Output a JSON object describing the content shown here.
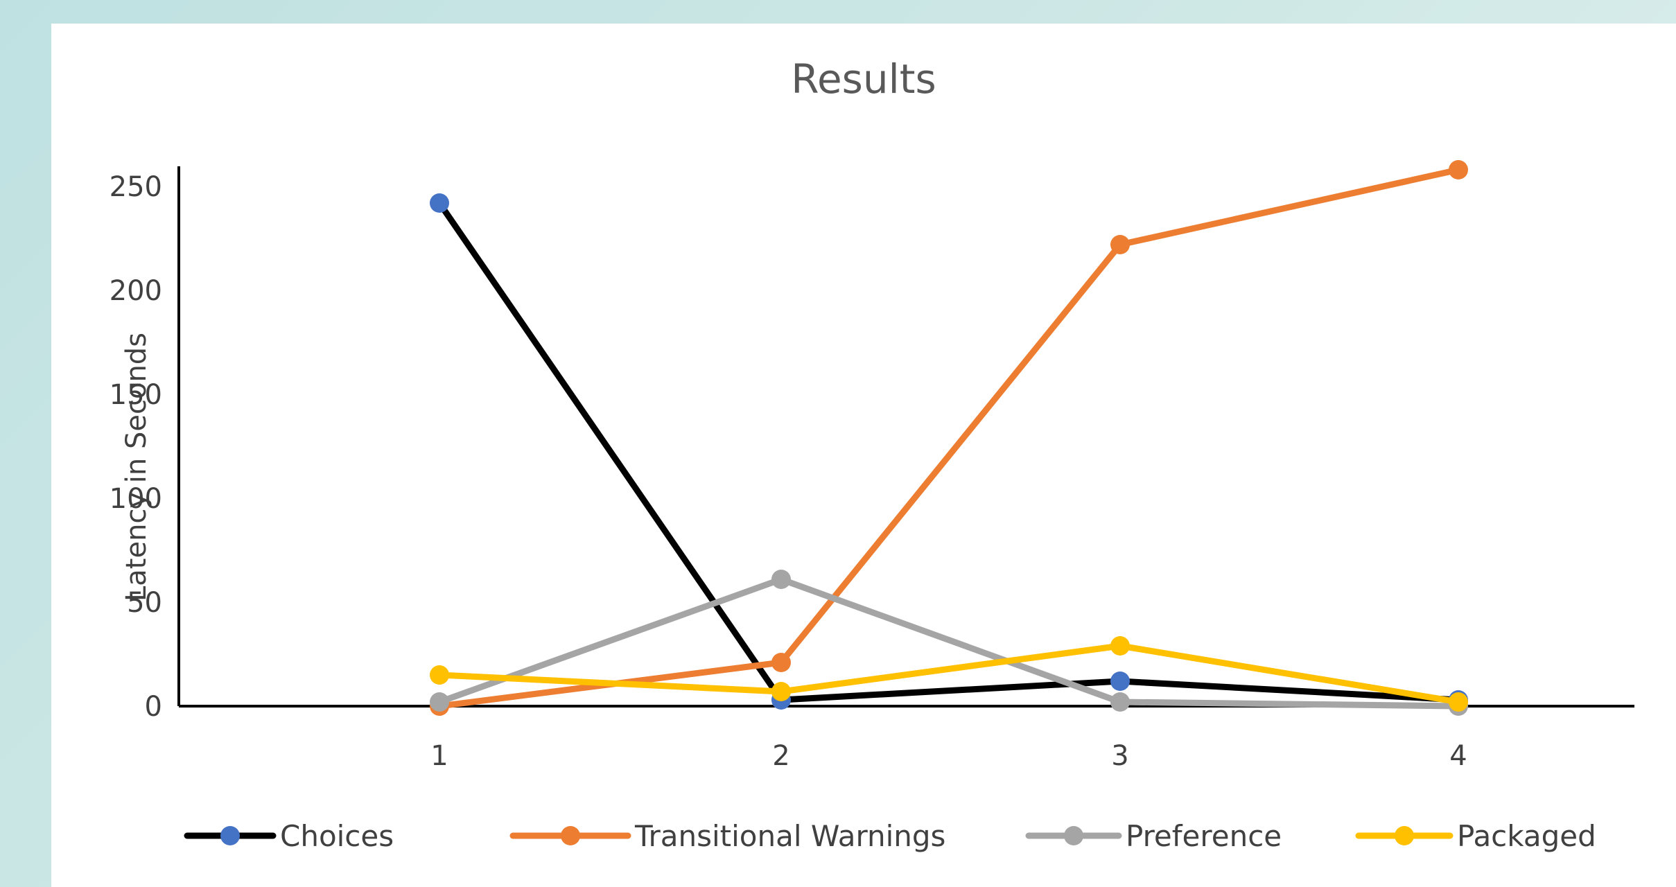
{
  "chart_data": {
    "type": "line",
    "title": "Results",
    "xlabel": "",
    "ylabel": "Latency in Seconds",
    "categories": [
      "1",
      "2",
      "3",
      "4"
    ],
    "ylim": [
      0,
      250
    ],
    "yticks": [
      0,
      50,
      100,
      150,
      200,
      250
    ],
    "grid": false,
    "legend_position": "bottom",
    "series": [
      {
        "name": "Choices",
        "values": [
          242,
          3,
          12,
          3
        ],
        "line_color": "#000000",
        "marker_color": "#4472c4"
      },
      {
        "name": "Transitional Warnings",
        "values": [
          0,
          21,
          222,
          258
        ],
        "line_color": "#ed7d31",
        "marker_color": "#ed7d31"
      },
      {
        "name": "Preference",
        "values": [
          2,
          61,
          2,
          0
        ],
        "line_color": "#a5a5a5",
        "marker_color": "#a5a5a5"
      },
      {
        "name": "Packaged",
        "values": [
          15,
          7,
          29,
          2
        ],
        "line_color": "#ffc000",
        "marker_color": "#ffc000"
      }
    ]
  }
}
